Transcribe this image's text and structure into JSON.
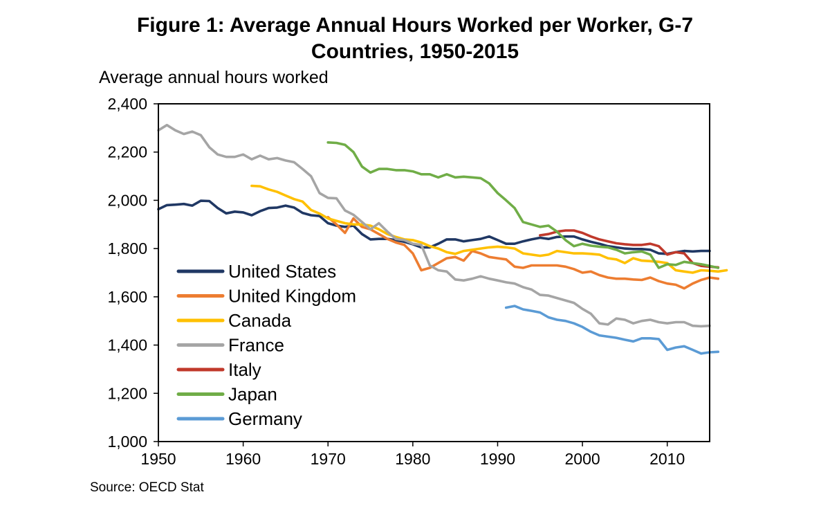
{
  "chart_data": {
    "type": "line",
    "title": "Figure 1: Average Annual Hours Worked per Worker, G-7 Countries, 1950-2015",
    "title_lines": [
      "Figure 1: Average Annual Hours Worked per Worker, G-7",
      "Countries, 1950-2015"
    ],
    "ylabel": "Average annual hours worked",
    "xlabel": "",
    "source": "Source: OECD Stat",
    "xlim": [
      1950,
      2015
    ],
    "ylim": [
      1000,
      2400
    ],
    "x_ticks": [
      1950,
      1960,
      1970,
      1980,
      1990,
      2000,
      2010
    ],
    "x_tick_labels": [
      "1950",
      "1960",
      "1970",
      "1980",
      "1990",
      "2000",
      "2010"
    ],
    "y_ticks": [
      1000,
      1200,
      1400,
      1600,
      1800,
      2000,
      2200,
      2400
    ],
    "y_tick_labels": [
      "1,000",
      "1,200",
      "1,400",
      "1,600",
      "1,800",
      "2,000",
      "2,200",
      "2,400"
    ],
    "legend_position": "lower-left",
    "series": [
      {
        "name": "United States",
        "color": "#203864",
        "start": 1950,
        "values": [
          1963,
          1980,
          1982,
          1985,
          1978,
          1998,
          1997,
          1968,
          1946,
          1953,
          1950,
          1938,
          1955,
          1968,
          1970,
          1978,
          1970,
          1948,
          1938,
          1935,
          1905,
          1895,
          1890,
          1895,
          1860,
          1838,
          1840,
          1840,
          1835,
          1828,
          1818,
          1805,
          1805,
          1820,
          1838,
          1838,
          1830,
          1835,
          1840,
          1850,
          1835,
          1820,
          1820,
          1830,
          1838,
          1845,
          1840,
          1848,
          1850,
          1850,
          1838,
          1828,
          1820,
          1810,
          1805,
          1800,
          1798,
          1798,
          1795,
          1780,
          1778,
          1785,
          1790,
          1788,
          1790,
          1790
        ]
      },
      {
        "name": "United Kingdom",
        "color": "#ED7D31",
        "start": 1970,
        "values": [
          1930,
          1900,
          1865,
          1925,
          1890,
          1880,
          1860,
          1840,
          1825,
          1815,
          1780,
          1710,
          1720,
          1740,
          1760,
          1765,
          1750,
          1790,
          1780,
          1765,
          1760,
          1755,
          1725,
          1720,
          1730,
          1730,
          1730,
          1730,
          1725,
          1715,
          1700,
          1705,
          1690,
          1680,
          1675,
          1675,
          1672,
          1670,
          1680,
          1665,
          1655,
          1650,
          1635,
          1655,
          1670,
          1680,
          1675
        ]
      },
      {
        "name": "Canada",
        "color": "#FFC000",
        "start": 1961,
        "values": [
          2060,
          2058,
          2045,
          2035,
          2020,
          2005,
          1995,
          1960,
          1945,
          1925,
          1915,
          1905,
          1900,
          1900,
          1895,
          1880,
          1860,
          1848,
          1838,
          1835,
          1825,
          1810,
          1800,
          1785,
          1778,
          1790,
          1795,
          1800,
          1805,
          1808,
          1805,
          1800,
          1780,
          1775,
          1770,
          1775,
          1790,
          1785,
          1780,
          1780,
          1778,
          1775,
          1760,
          1755,
          1740,
          1760,
          1750,
          1748,
          1745,
          1740,
          1710,
          1705,
          1700,
          1710,
          1708,
          1705,
          1710
        ]
      },
      {
        "name": "France",
        "color": "#A5A5A5",
        "start": 1950,
        "values": [
          2290,
          2312,
          2290,
          2275,
          2285,
          2270,
          2220,
          2190,
          2180,
          2180,
          2190,
          2170,
          2185,
          2170,
          2175,
          2165,
          2158,
          2130,
          2100,
          2030,
          2010,
          2008,
          1958,
          1940,
          1910,
          1880,
          1905,
          1870,
          1840,
          1835,
          1820,
          1815,
          1730,
          1710,
          1705,
          1672,
          1668,
          1675,
          1685,
          1675,
          1668,
          1660,
          1655,
          1640,
          1630,
          1608,
          1605,
          1595,
          1585,
          1575,
          1550,
          1530,
          1490,
          1485,
          1510,
          1505,
          1490,
          1500,
          1505,
          1495,
          1490,
          1495,
          1495,
          1480,
          1478,
          1480
        ]
      },
      {
        "name": "Italy",
        "color": "#C0392B",
        "start": 1995,
        "values": [
          1855,
          1860,
          1870,
          1875,
          1875,
          1865,
          1850,
          1838,
          1830,
          1822,
          1818,
          1815,
          1815,
          1820,
          1810,
          1775,
          1785,
          1780,
          1740,
          1728,
          1725,
          1722
        ]
      },
      {
        "name": "Japan",
        "color": "#70AD47",
        "start": 1970,
        "values": [
          2240,
          2238,
          2230,
          2200,
          2140,
          2115,
          2130,
          2130,
          2125,
          2125,
          2120,
          2108,
          2108,
          2095,
          2108,
          2095,
          2098,
          2095,
          2092,
          2070,
          2030,
          2000,
          1968,
          1910,
          1900,
          1890,
          1895,
          1870,
          1835,
          1810,
          1820,
          1812,
          1808,
          1805,
          1795,
          1780,
          1785,
          1788,
          1775,
          1720,
          1735,
          1732,
          1745,
          1740,
          1735,
          1728,
          1720
        ]
      },
      {
        "name": "Germany",
        "color": "#5B9BD5",
        "start": 1991,
        "values": [
          1555,
          1562,
          1548,
          1542,
          1535,
          1515,
          1505,
          1500,
          1490,
          1475,
          1455,
          1440,
          1435,
          1430,
          1422,
          1415,
          1428,
          1428,
          1425,
          1380,
          1390,
          1395,
          1380,
          1365,
          1370,
          1372
        ]
      }
    ]
  }
}
